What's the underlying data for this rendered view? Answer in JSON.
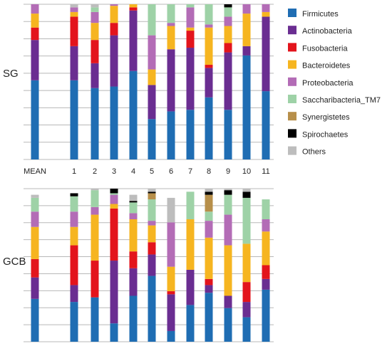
{
  "colors": {
    "Firmicutes": "#1f6db3",
    "Actinobacteria": "#6a2d91",
    "Fusobacteria": "#e3141c",
    "Bacteroidetes": "#f6b520",
    "Proteobacteria": "#b36cb6",
    "Saccharibacteria_TM7": "#9ed2a7",
    "Synergistetes": "#b78f4a",
    "Spirochaetes": "#000000",
    "Others": "#bdbdbd"
  },
  "chart_data": [
    {
      "type": "bar",
      "stacked": true,
      "title": "SG",
      "categories": [
        "MEAN",
        "1",
        "2",
        "3",
        "4",
        "5",
        "6",
        "7",
        "8",
        "9",
        "10",
        "11"
      ],
      "ylim": [
        0,
        100
      ],
      "grid": true,
      "series": [
        {
          "name": "Firmicutes",
          "values": [
            51,
            51,
            46,
            47,
            57,
            26,
            31,
            32,
            40,
            32,
            67,
            44
          ]
        },
        {
          "name": "Actinobacteria",
          "values": [
            26,
            22,
            16,
            33,
            39,
            22,
            40,
            40,
            19,
            37,
            6,
            48
          ]
        },
        {
          "name": "Fusobacteria",
          "values": [
            8,
            19,
            15,
            8,
            2,
            0,
            0,
            11,
            2,
            6,
            0,
            0
          ]
        },
        {
          "name": "Bacteroidetes",
          "values": [
            9,
            3,
            11,
            11,
            2,
            10,
            15,
            2,
            24,
            11,
            21,
            3
          ]
        },
        {
          "name": "Proteobacteria",
          "values": [
            6,
            3,
            7,
            1,
            0,
            22,
            2,
            13,
            2,
            6,
            6,
            5
          ]
        },
        {
          "name": "Saccharibacteria_TM7",
          "values": [
            0,
            0,
            3,
            0,
            0,
            20,
            12,
            2,
            13,
            6,
            0,
            0
          ]
        },
        {
          "name": "Synergistetes",
          "values": [
            0,
            0,
            0,
            0,
            0,
            0,
            0,
            0,
            0,
            0,
            0,
            0
          ]
        },
        {
          "name": "Spirochaetes",
          "values": [
            0,
            0,
            0,
            0,
            0,
            0,
            0,
            0,
            0,
            2,
            0,
            0
          ]
        },
        {
          "name": "Others",
          "values": [
            0,
            2,
            2,
            0,
            0,
            0,
            0,
            0,
            0,
            0,
            0,
            0
          ]
        }
      ]
    },
    {
      "type": "bar",
      "stacked": true,
      "title": "GCB",
      "categories": [
        "MEAN",
        "1",
        "2",
        "3",
        "4",
        "5",
        "6",
        "7",
        "8",
        "9",
        "10",
        "11"
      ],
      "ylim": [
        0,
        100
      ],
      "grid": true,
      "series": [
        {
          "name": "Firmicutes",
          "values": [
            28,
            26,
            29,
            12,
            30,
            43,
            7,
            24,
            32,
            22,
            16,
            34
          ]
        },
        {
          "name": "Actinobacteria",
          "values": [
            14,
            11,
            0,
            41,
            18,
            14,
            24,
            23,
            5,
            8,
            10,
            7
          ]
        },
        {
          "name": "Fusobacteria",
          "values": [
            12,
            26,
            24,
            34,
            11,
            8,
            2,
            0,
            4,
            0,
            13,
            9
          ]
        },
        {
          "name": "Bacteroidetes",
          "values": [
            21,
            12,
            30,
            3,
            21,
            11,
            16,
            33,
            27,
            33,
            25,
            22
          ]
        },
        {
          "name": "Proteobacteria",
          "values": [
            10,
            10,
            5,
            6,
            4,
            3,
            29,
            0,
            11,
            20,
            0,
            8
          ]
        },
        {
          "name": "Saccharibacteria_TM7",
          "values": [
            9,
            10,
            11,
            1,
            7,
            14,
            0,
            18,
            6,
            13,
            30,
            13
          ]
        },
        {
          "name": "Synergistetes",
          "values": [
            0,
            0,
            0,
            0,
            0,
            4,
            0,
            0,
            11,
            0,
            0,
            0
          ]
        },
        {
          "name": "Spirochaetes",
          "values": [
            0,
            2,
            0,
            3,
            1,
            1,
            0,
            0,
            2,
            3,
            4,
            0
          ]
        },
        {
          "name": "Others",
          "values": [
            2,
            0,
            1,
            0,
            4,
            2,
            16,
            0,
            2,
            1,
            2,
            0
          ]
        }
      ]
    }
  ],
  "legend": {
    "position": "right",
    "items": [
      "Firmicutes",
      "Actinobacteria",
      "Fusobacteria",
      "Bacteroidetes",
      "Proteobacteria",
      "Saccharibacteria_TM7",
      "Synergistetes",
      "Spirochaetes",
      "Others"
    ]
  }
}
